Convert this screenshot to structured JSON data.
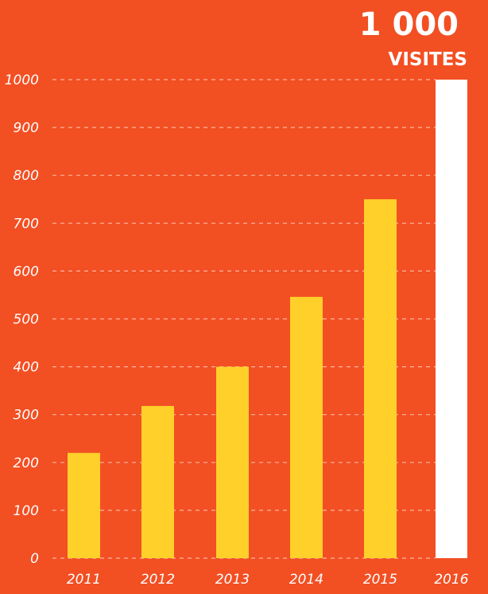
{
  "chart_data": {
    "type": "bar",
    "categories": [
      "2011",
      "2012",
      "2013",
      "2014",
      "2015",
      "2016"
    ],
    "values": [
      220,
      318,
      400,
      546,
      750,
      1000
    ],
    "title": "",
    "xlabel": "",
    "ylabel": "",
    "ylim": [
      0,
      1000
    ],
    "yticks": [
      0,
      100,
      200,
      300,
      400,
      500,
      600,
      700,
      800,
      900,
      1000
    ],
    "grid": true,
    "highlight": {
      "value_label": "1 000",
      "unit_label": "VISITES"
    }
  },
  "colors": {
    "background": "#f24f23",
    "bar": "#ffd02a",
    "highlight_bar": "#ffffff",
    "text": "#ffffff",
    "grid": "#ffc8b5"
  }
}
